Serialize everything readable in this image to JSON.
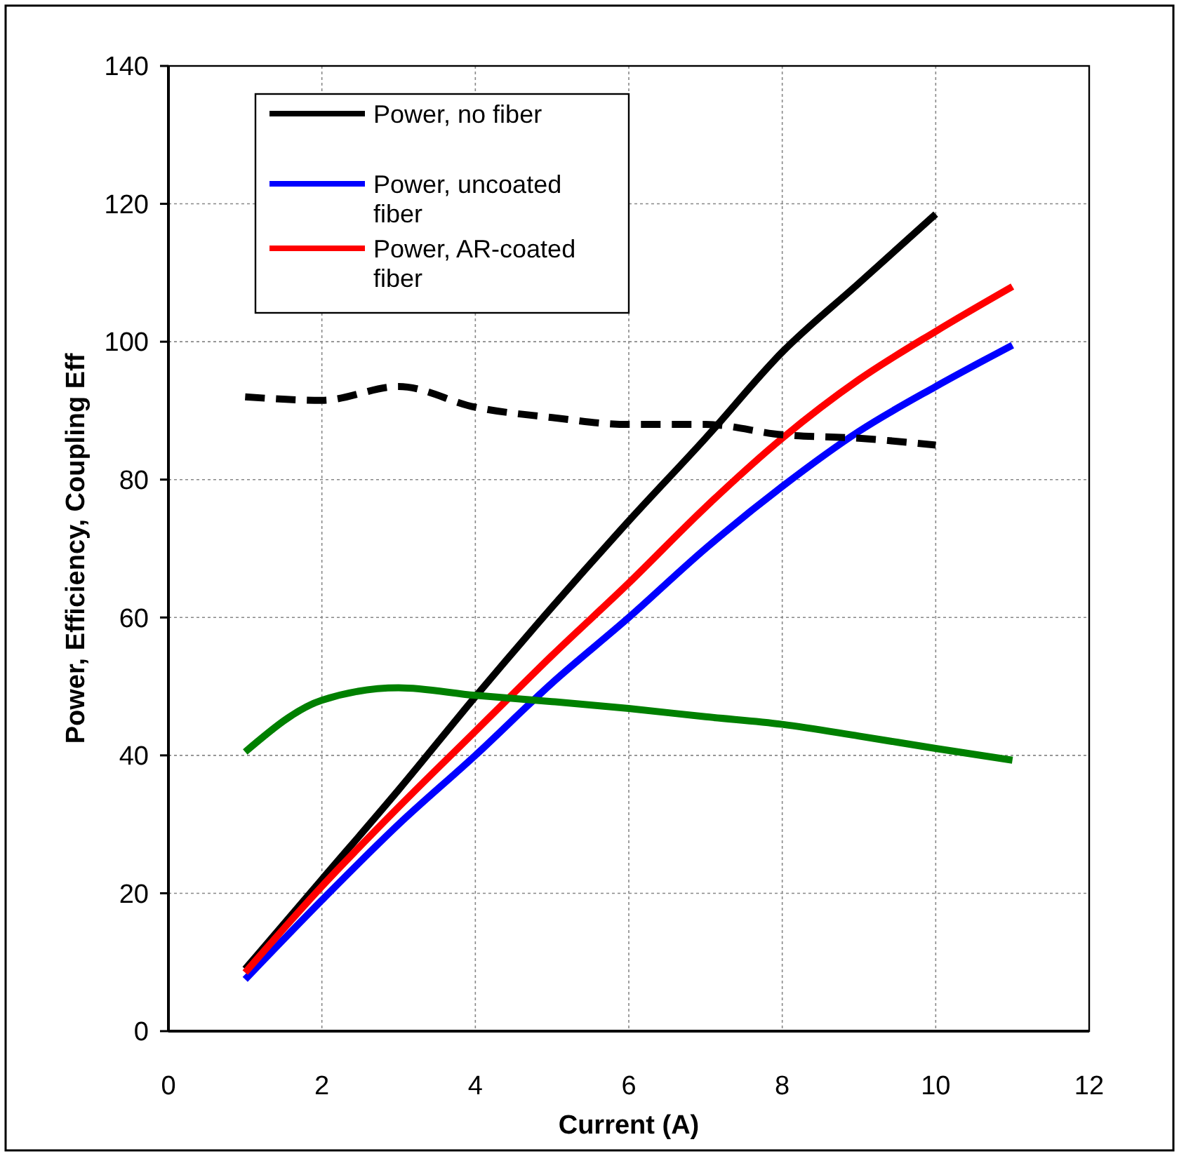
{
  "chart_data": {
    "type": "line",
    "xlabel": "Current (A)",
    "ylabel": "Power, Efficiency, Coupling Eff",
    "xlim": [
      0,
      12
    ],
    "ylim": [
      0,
      140
    ],
    "xticks": [
      0,
      2,
      4,
      6,
      8,
      10,
      12
    ],
    "yticks": [
      0,
      20,
      40,
      60,
      80,
      100,
      120,
      140
    ],
    "grid": true,
    "legend": "top left",
    "marker": "none",
    "x": [
      1,
      2,
      3,
      4,
      5,
      6,
      7,
      8,
      9,
      10,
      11
    ],
    "series": [
      {
        "name": "Power, no fiber",
        "color": "#000000",
        "x": [
          1,
          2,
          3,
          4,
          5,
          6,
          7,
          8,
          9,
          10
        ],
        "values": [
          9,
          22,
          35,
          48.5,
          61.5,
          74,
          86,
          98.5,
          108.5,
          118.5
        ]
      },
      {
        "name": "Power, uncoated fiber",
        "color": "#0000ff",
        "values": [
          7.5,
          19,
          30,
          40,
          50.5,
          60,
          70,
          79,
          87,
          93.5,
          99.5
        ]
      },
      {
        "name": "Power, AR-coated fiber",
        "color": "#ff0000",
        "values": [
          8.5,
          21,
          32.5,
          43.5,
          54.5,
          65,
          76,
          86,
          94.5,
          101.5,
          108
        ]
      },
      {
        "color": "#000000",
        "line_style": "dashed",
        "x": [
          1,
          2,
          3,
          4,
          5,
          6,
          7,
          8,
          9,
          10
        ],
        "values": [
          92,
          91.5,
          93.5,
          90.5,
          89,
          88,
          88,
          86.5,
          86,
          85
        ]
      },
      {
        "color": "#008000",
        "values": [
          40.5,
          48,
          49.8,
          48.7,
          47.8,
          46.8,
          45.6,
          44.5,
          42.8,
          41,
          39.3
        ]
      }
    ]
  }
}
